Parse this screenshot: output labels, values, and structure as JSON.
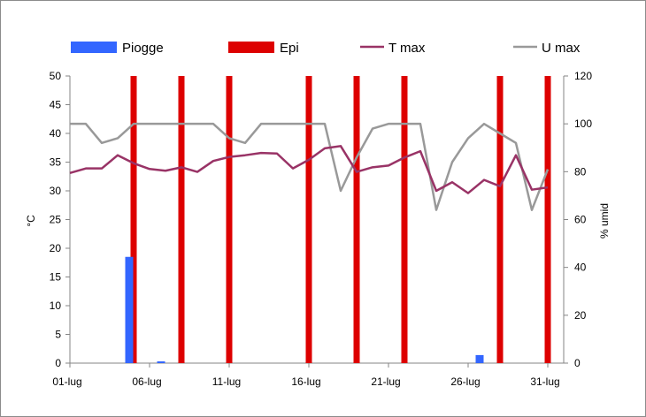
{
  "chart_data": {
    "type": "bar",
    "title": "",
    "x_tick_labels": [
      "01-lug",
      "06-lug",
      "11-lug",
      "16-lug",
      "21-lug",
      "26-lug",
      "31-lug"
    ],
    "y_left": {
      "label": "°C",
      "min": 0,
      "max": 50,
      "step": 5
    },
    "y_right": {
      "label": "% umid",
      "min": 0,
      "max": 120,
      "step": 20
    },
    "legend": {
      "placement": "top",
      "entries": [
        {
          "label": "Piogge",
          "color": "#3366ff",
          "kind": "bar"
        },
        {
          "label": "Epi",
          "color": "#dd0000",
          "kind": "bar"
        },
        {
          "label": "T max",
          "color": "#993366",
          "kind": "line"
        },
        {
          "label": "U max",
          "color": "#999999",
          "kind": "line"
        }
      ]
    },
    "x_days": [
      1,
      2,
      3,
      4,
      5,
      6,
      7,
      8,
      9,
      10,
      11,
      12,
      13,
      14,
      15,
      16,
      17,
      18,
      19,
      20,
      21,
      22,
      23,
      24,
      25,
      26,
      27,
      28,
      29,
      30,
      31
    ],
    "series": [
      {
        "name": "Piogge",
        "type": "bar",
        "axis": "left",
        "color": "#3366ff",
        "points": [
          {
            "day": 5,
            "value": 18.5
          },
          {
            "day": 7,
            "value": 0.3
          },
          {
            "day": 27,
            "value": 1.4
          }
        ]
      },
      {
        "name": "Epi",
        "type": "event",
        "color": "#dd0000",
        "days": [
          5,
          8,
          11,
          16,
          19,
          22,
          28,
          31
        ]
      },
      {
        "name": "T max",
        "type": "line",
        "axis": "left",
        "color": "#993366",
        "values": [
          33.1,
          33.9,
          33.9,
          36.2,
          34.8,
          33.8,
          33.5,
          34.1,
          33.3,
          35.2,
          35.9,
          36.2,
          36.6,
          36.5,
          33.9,
          35.4,
          37.4,
          37.8,
          33.3,
          34.1,
          34.4,
          35.8,
          36.9,
          30.0,
          31.5,
          29.6,
          31.9,
          30.8,
          36.2,
          30.2,
          30.6
        ]
      },
      {
        "name": "U max",
        "type": "line",
        "axis": "right",
        "color": "#999999",
        "values": [
          100,
          100,
          92,
          94,
          100,
          100,
          100,
          100,
          100,
          100,
          94,
          92,
          100,
          100,
          100,
          100,
          100,
          72,
          86,
          98,
          100,
          100,
          100,
          64,
          84,
          94,
          100,
          96,
          92,
          64,
          81
        ]
      }
    ],
    "grid": false
  }
}
